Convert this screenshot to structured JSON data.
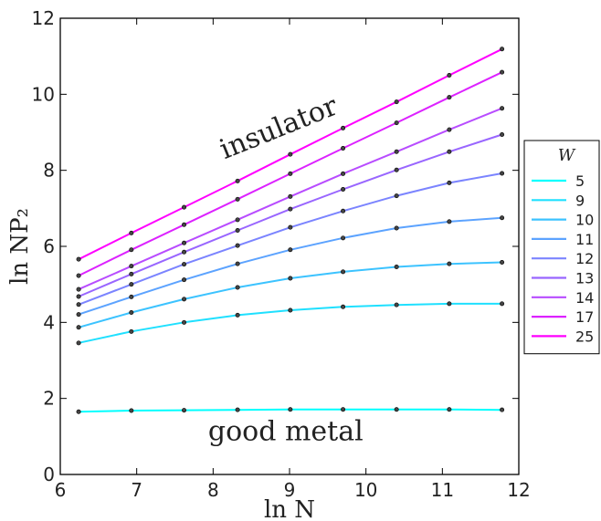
{
  "chart_data": {
    "type": "line",
    "xlabel": "ln N",
    "ylabel": "ln NP₂",
    "xlim": [
      6,
      12
    ],
    "ylim": [
      0,
      12
    ],
    "xticks": [
      "6",
      "7",
      "8",
      "9",
      "10",
      "11",
      "12"
    ],
    "yticks": [
      "0",
      "2",
      "4",
      "6",
      "8",
      "10",
      "12"
    ],
    "x": [
      6.24,
      6.93,
      7.62,
      8.32,
      9.01,
      9.7,
      10.4,
      11.09,
      11.78
    ],
    "legend_title": "W",
    "legend_position": "right",
    "annotations": [
      {
        "text": "insulator",
        "x": 8.9,
        "y": 8.9,
        "rotation_deg": -22
      },
      {
        "text": "good metal",
        "x": 8.95,
        "y": 0.9,
        "rotation_deg": 0
      }
    ],
    "series": [
      {
        "name": "5",
        "color": "#00ffff",
        "values": [
          1.65,
          1.68,
          1.69,
          1.7,
          1.71,
          1.71,
          1.71,
          1.71,
          1.7
        ]
      },
      {
        "name": "9",
        "color": "#1fe0ff",
        "values": [
          3.46,
          3.76,
          4.0,
          4.19,
          4.32,
          4.41,
          4.46,
          4.49,
          4.49
        ]
      },
      {
        "name": "10",
        "color": "#3cc3ff",
        "values": [
          3.87,
          4.26,
          4.61,
          4.92,
          5.16,
          5.33,
          5.46,
          5.54,
          5.58
        ]
      },
      {
        "name": "11",
        "color": "#5ca3ff",
        "values": [
          4.21,
          4.67,
          5.12,
          5.54,
          5.91,
          6.22,
          6.48,
          6.65,
          6.75
        ]
      },
      {
        "name": "12",
        "color": "#7b84ff",
        "values": [
          4.47,
          5.0,
          5.53,
          6.02,
          6.5,
          6.93,
          7.33,
          7.67,
          7.92
        ]
      },
      {
        "name": "13",
        "color": "#9966ff",
        "values": [
          4.68,
          5.27,
          5.85,
          6.42,
          6.98,
          7.5,
          8.01,
          8.49,
          8.94
        ]
      },
      {
        "name": "14",
        "color": "#b84cff",
        "values": [
          4.87,
          5.48,
          6.09,
          6.7,
          7.31,
          7.91,
          8.49,
          9.07,
          9.63
        ]
      },
      {
        "name": "17",
        "color": "#dc22ff",
        "values": [
          5.23,
          5.91,
          6.57,
          7.24,
          7.91,
          8.58,
          9.25,
          9.92,
          10.58
        ]
      },
      {
        "name": "25",
        "color": "#ff00ff",
        "values": [
          5.66,
          6.35,
          7.03,
          7.72,
          8.42,
          9.11,
          9.8,
          10.5,
          11.19
        ]
      }
    ]
  }
}
